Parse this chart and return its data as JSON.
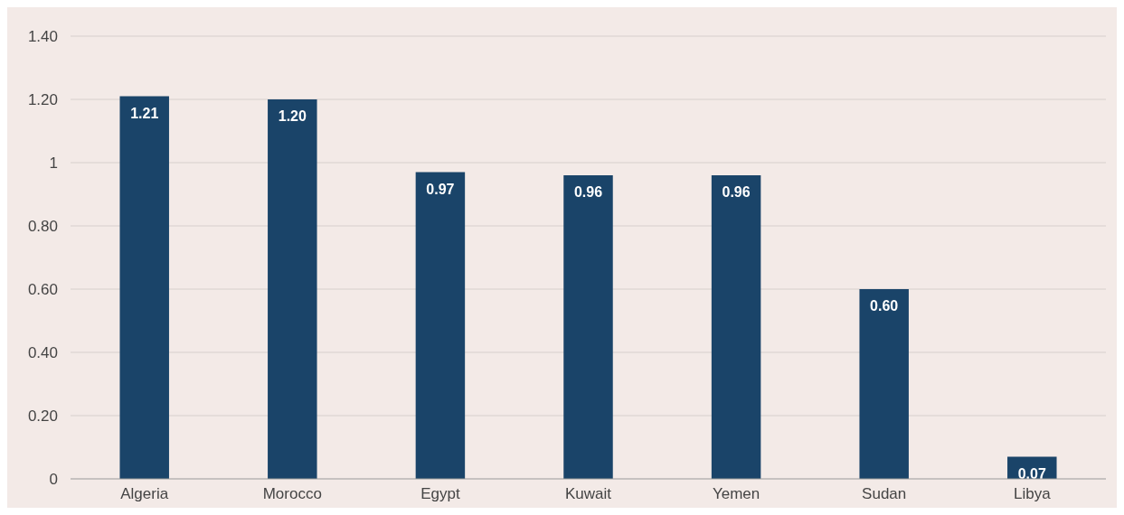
{
  "chart_data": {
    "type": "bar",
    "categories": [
      "Algeria",
      "Morocco",
      "Egypt",
      "Kuwait",
      "Yemen",
      "Sudan",
      "Libya"
    ],
    "values": [
      1.21,
      1.2,
      0.97,
      0.96,
      0.96,
      0.6,
      0.07
    ],
    "color": "#1a4469",
    "ylim": [
      0,
      1.4
    ],
    "yticks": [
      0,
      {
        "value": 0.2,
        "label": "0.20"
      },
      {
        "value": 0.4,
        "label": "0.40"
      },
      {
        "value": 0.6,
        "label": "0.60"
      },
      {
        "value": 0.8,
        "label": "0.80"
      },
      1,
      {
        "value": 1.2,
        "label": "1.20"
      },
      {
        "value": 1.4,
        "label": "1.40"
      }
    ],
    "value_labels": [
      "1.21",
      "1.20",
      "0.97",
      "0.96",
      "0.96",
      "0.60",
      "0.07"
    ],
    "grid": "y"
  }
}
